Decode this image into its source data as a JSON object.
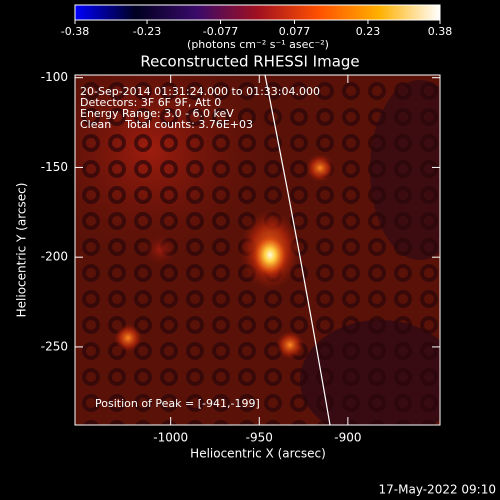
{
  "chart_data": {
    "type": "image",
    "title": "Reconstructed RHESSI Image",
    "x_label": "Heliocentric X (arcsec)",
    "y_label": "Heliocentric Y (arcsec)",
    "xlim": [
      -1054,
      -848
    ],
    "xticks": [
      -1000,
      -950,
      -900
    ],
    "ylim": [
      -293.5,
      -98.5
    ],
    "yticks": [
      -250,
      -200,
      -150,
      -100
    ],
    "annotations": [
      "20-Sep-2014 01:31:24.000 to 01:33:04.000",
      "Detectors: 3F 6F 9F, Att 0",
      "Energy Range: 3.0 - 6.0 keV",
      "Clean    Total counts: 3.76E+03"
    ],
    "peak_label": "Position of Peak = [-941,-199]",
    "colorbar": {
      "clim": [
        -0.38,
        0.38
      ],
      "ticks": [
        -0.38,
        -0.23,
        -0.077,
        0.077,
        0.23,
        0.38
      ],
      "label": "(photons cm⁻² s⁻¹ asec⁻²)",
      "colormap": [
        "#0000ff",
        "#000020",
        "#3a0a6a",
        "#a01020",
        "#ff5000",
        "#ffb000",
        "#ffffff"
      ]
    },
    "footer": "17-May-2022 09:10"
  }
}
